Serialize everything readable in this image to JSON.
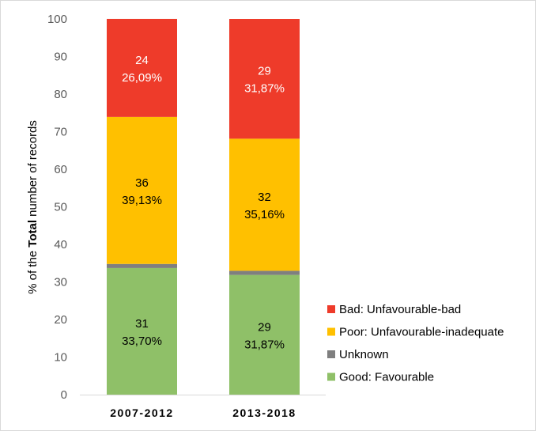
{
  "chart_data": {
    "type": "bar",
    "stacked": true,
    "title": "",
    "xlabel": "",
    "ylabel": {
      "pre": "% of the ",
      "bold": "Total",
      "post": " number of records"
    },
    "ylim": [
      0,
      100
    ],
    "yticks": [
      "0",
      "10",
      "20",
      "30",
      "40",
      "50",
      "60",
      "70",
      "80",
      "90",
      "100"
    ],
    "categories": [
      "2007-2012",
      "2013-2018"
    ],
    "series": [
      {
        "name": "Good: Favourable",
        "color": "#8fc068",
        "values": [
          33.7,
          31.87
        ],
        "labels": [
          [
            "31",
            "33,70%"
          ],
          [
            "29",
            "31,87%"
          ]
        ]
      },
      {
        "name": "Unknown",
        "color": "#7f7f7f",
        "values": [
          1.09,
          1.1
        ],
        "labels": [
          null,
          null
        ]
      },
      {
        "name": "Poor: Unfavourable-inadequate",
        "color": "#ffc000",
        "values": [
          39.13,
          35.16
        ],
        "labels": [
          [
            "36",
            "39,13%"
          ],
          [
            "32",
            "35,16%"
          ]
        ]
      },
      {
        "name": "Bad: Unfavourable-bad",
        "color": "#ee3b2a",
        "values": [
          26.09,
          31.87
        ],
        "labels": [
          [
            "24",
            "26,09%"
          ],
          [
            "29",
            "31,87%"
          ]
        ]
      }
    ],
    "legend_order": [
      "Bad: Unfavourable-bad",
      "Poor: Unfavourable-inadequate",
      "Unknown",
      "Good: Favourable"
    ],
    "legend_position": "right"
  }
}
